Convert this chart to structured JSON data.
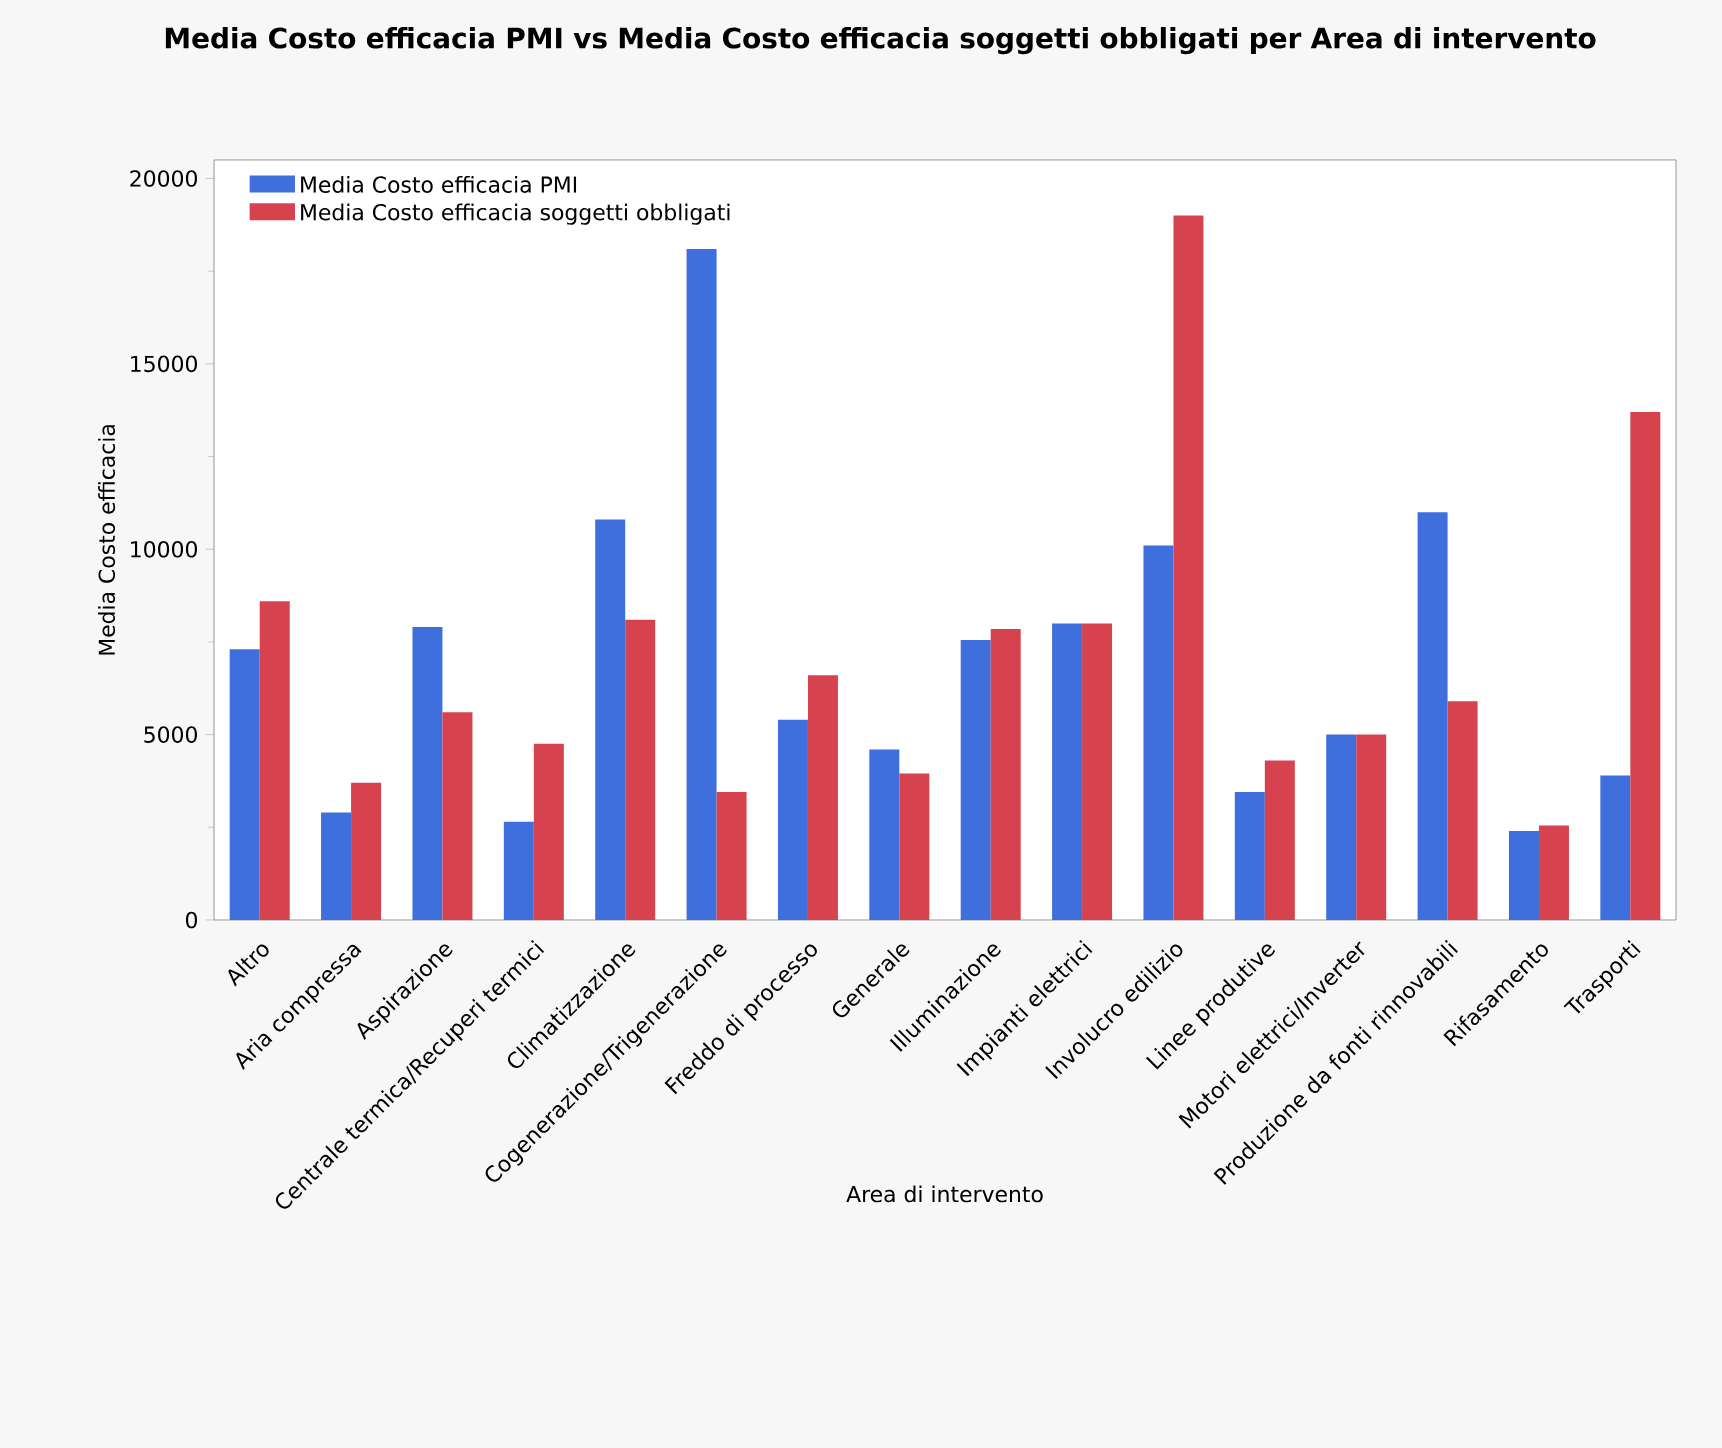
{
  "chart_data": {
    "type": "bar",
    "title": "Media Costo efficacia PMI vs Media Costo efficacia soggetti obbligati per Area di intervento",
    "xlabel": "Area di intervento",
    "ylabel": "Media Costo efficacia",
    "categories": [
      "Altro",
      "Aria compressa",
      "Aspirazione",
      "Centrale termica/Recuperi termici",
      "Climatizzazione",
      "Cogenerazione/Trigenerazione",
      "Freddo di processo",
      "Generale",
      "Illuminazione",
      "Impianti elettrici",
      "Involucro edilizio",
      "Linee produtive",
      "Motori elettrici/Inverter",
      "Produzione da fonti rinnovabili",
      "Rifasamento",
      "Trasporti"
    ],
    "series": [
      {
        "name": "Media Costo efficacia PMI",
        "color": "#3f6fdc",
        "values": [
          7300,
          2900,
          7900,
          2650,
          10800,
          18100,
          5400,
          4600,
          7550,
          8000,
          10100,
          3450,
          5000,
          11000,
          2400,
          3900
        ]
      },
      {
        "name": "Media Costo efficacia soggetti obbligati",
        "color": "#d6434f",
        "values": [
          8600,
          3700,
          5600,
          4750,
          8100,
          3450,
          6600,
          3950,
          7850,
          8000,
          19000,
          4300,
          5000,
          5900,
          2550,
          13700
        ]
      }
    ],
    "ylim": [
      0,
      20500
    ],
    "yticks": [
      0,
      5000,
      10000,
      15000,
      20000
    ],
    "legend": "top left",
    "grid": false
  }
}
